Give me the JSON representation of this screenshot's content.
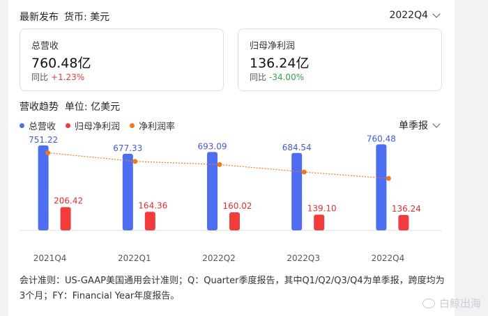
{
  "header": {
    "title": "最新发布",
    "currency": "货币: 美元",
    "period": "2022Q4"
  },
  "kpis": [
    {
      "title": "总营收",
      "value": "760.48亿",
      "compare_label": "同比",
      "change": "+1.23%"
    },
    {
      "title": "归母净利润",
      "value": "136.24亿",
      "compare_label": "同比",
      "change": "-34.00%"
    }
  ],
  "trend": {
    "title": "营收趋势",
    "unit": "单位: 亿美元",
    "frequency": "单季报"
  },
  "colors": {
    "revenue": "#4e6ef2",
    "profit": "#f03c3c",
    "margin": "#f07a1a"
  },
  "chart_data": {
    "type": "bar",
    "categories": [
      "2021Q4",
      "2022Q1",
      "2022Q2",
      "2022Q3",
      "2022Q4"
    ],
    "series": [
      {
        "name": "总营收",
        "values": [
          751.22,
          677.33,
          693.09,
          684.54,
          760.48
        ],
        "labels": [
          "751.22",
          "677.33",
          "693.09",
          "684.54",
          "760.48"
        ]
      },
      {
        "name": "归母净利润",
        "values": [
          206.42,
          164.36,
          160.02,
          139.1,
          136.24
        ],
        "labels": [
          "206.42",
          "164.36",
          "160.02",
          "139.10",
          "136.24"
        ]
      },
      {
        "name": "净利润率",
        "type": "line",
        "values": [
          27.5,
          24.3,
          23.1,
          20.3,
          17.9
        ]
      }
    ],
    "ylim": [
      0,
      800
    ]
  },
  "footnote": "会计准则：US-GAAP美国通用会计准则；Q：Quarter季度报告，其中Q1/Q2/Q3/Q4为单季报，跨度均为3个月；FY：Financial Year年度报告。",
  "watermark": "白鲸出海"
}
